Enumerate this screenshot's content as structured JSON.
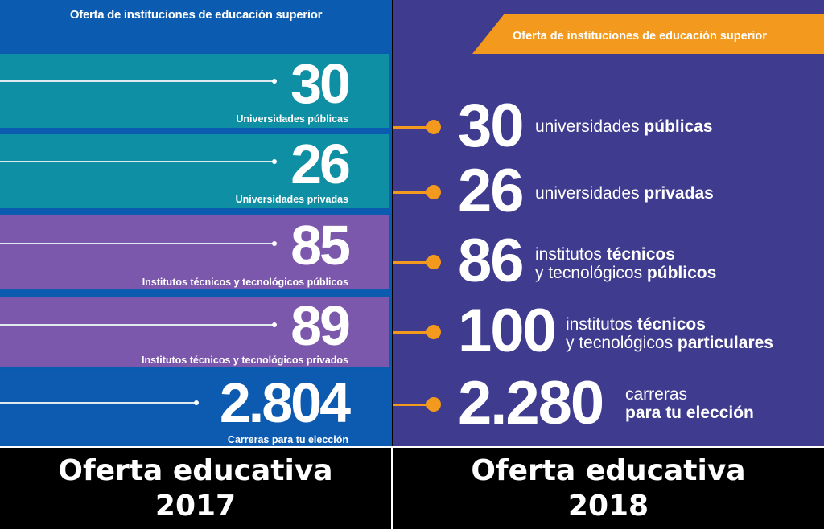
{
  "left": {
    "title": "Oferta de instituciones de educación superior",
    "items": [
      {
        "number": "30",
        "label": "Universidades públicas",
        "color": "#0f8fa3"
      },
      {
        "number": "26",
        "label": "Universidades privadas",
        "color": "#0f8fa3"
      },
      {
        "number": "85",
        "label": "Institutos técnicos y tecnológicos públicos",
        "color": "#7b58ab"
      },
      {
        "number": "89",
        "label": "Institutos técnicos y tecnológicos privados",
        "color": "#7b58ab"
      },
      {
        "number": "2.804",
        "label": "Carreras para tu elección",
        "color": "#0d5bb0"
      }
    ]
  },
  "right": {
    "title": "Oferta de instituciones de educación superior",
    "items": [
      {
        "number": "30",
        "line1": "universidades ",
        "line1_bold": "públicas",
        "line2": "",
        "line2_bold": ""
      },
      {
        "number": "26",
        "line1": "universidades ",
        "line1_bold": "privadas",
        "line2": "",
        "line2_bold": ""
      },
      {
        "number": "86",
        "line1": "institutos ",
        "line1_bold": "técnicos",
        "line2": "y tecnológicos ",
        "line2_bold": "públicos"
      },
      {
        "number": "100",
        "line1": "institutos ",
        "line1_bold": "técnicos",
        "line2": "y tecnológicos ",
        "line2_bold": "particulares"
      },
      {
        "number": "2.280",
        "line1": "carreras",
        "line1_bold": "",
        "line2": "",
        "line2_bold": "para tu elección"
      }
    ]
  },
  "captions": {
    "left": [
      "Oferta educativa",
      "2017"
    ],
    "right": [
      "Oferta educativa",
      "2018"
    ]
  },
  "colors": {
    "orange": "#f39a1e",
    "left_bg": "#0b5cb0",
    "right_bg": "#3f3b8f"
  }
}
